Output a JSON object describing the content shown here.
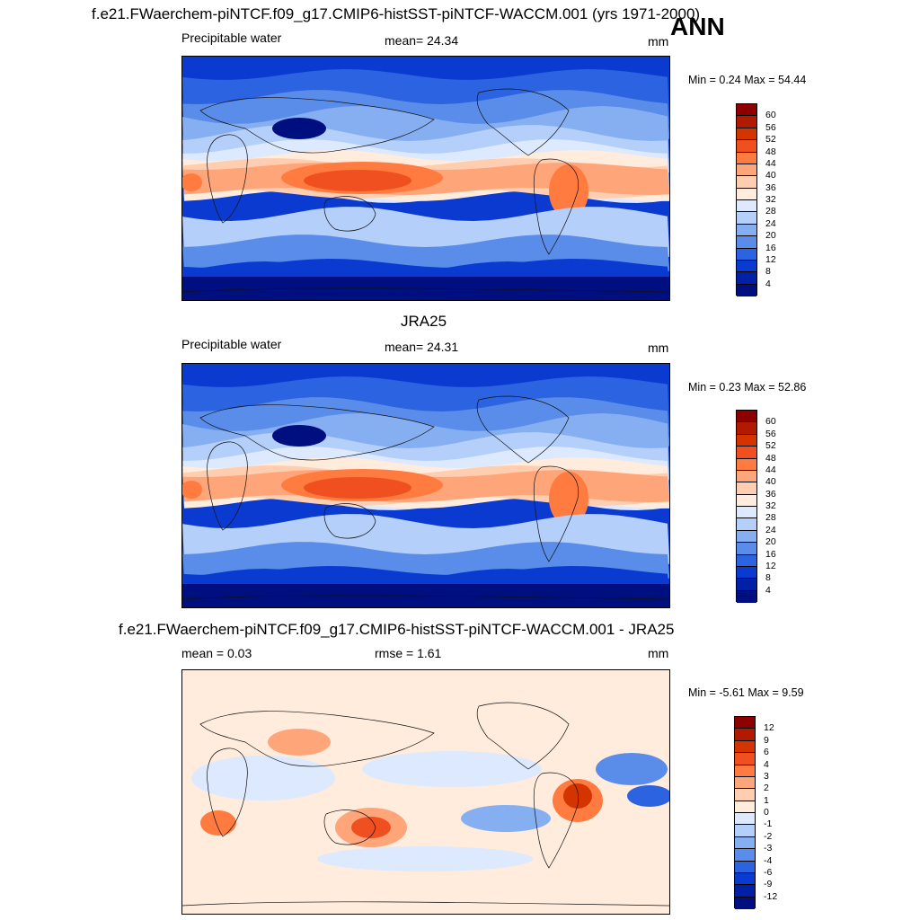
{
  "header": {
    "title": "f.e21.FWaerchem-piNTCF.f09_g17.CMIP6-histSST-piNTCF-WACCM.001 (yrs 1971-2000)",
    "season": "ANN"
  },
  "panels": [
    {
      "left_label": "Precipitable water",
      "center_label": "mean=  24.34",
      "right_label": "mm",
      "minmax": "Min =   0.24 Max =  54.44",
      "kind": "model"
    },
    {
      "title": "JRA25",
      "left_label": "Precipitable water",
      "center_label": "mean=  24.31",
      "right_label": "mm",
      "minmax": "Min =   0.23 Max =  52.86",
      "kind": "obs"
    },
    {
      "title": "f.e21.FWaerchem-piNTCF.f09_g17.CMIP6-histSST-piNTCF-WACCM.001 - JRA25",
      "left_label": "mean =   0.03",
      "center_label": "rmse =   1.61",
      "right_label": "mm",
      "minmax": "Min =  -5.61 Max =   9.59",
      "kind": "diff"
    }
  ],
  "colorbars": {
    "precip": {
      "labels": [
        "60",
        "56",
        "52",
        "48",
        "44",
        "40",
        "36",
        "32",
        "28",
        "24",
        "20",
        "16",
        "12",
        "8",
        "4"
      ],
      "colors": [
        "#8c0000",
        "#b21a00",
        "#d43500",
        "#f05020",
        "#ff7b40",
        "#ffa57a",
        "#ffcdb0",
        "#ffecdc",
        "#dce9ff",
        "#b4cff9",
        "#86aff2",
        "#5a8de9",
        "#2c63e0",
        "#0b3ad0",
        "#0020a8",
        "#000f80"
      ]
    },
    "diff": {
      "labels": [
        "12",
        "9",
        "6",
        "4",
        "3",
        "2",
        "1",
        "0",
        "-1",
        "-2",
        "-3",
        "-4",
        "-6",
        "-9",
        "-12"
      ],
      "colors": [
        "#8c0000",
        "#b21a00",
        "#d43500",
        "#f05020",
        "#ff7b40",
        "#ffa57a",
        "#ffcdb0",
        "#ffecdc",
        "#dce9ff",
        "#b4cff9",
        "#86aff2",
        "#5a8de9",
        "#2c63e0",
        "#0b3ad0",
        "#0020a8",
        "#000f80"
      ]
    }
  }
}
